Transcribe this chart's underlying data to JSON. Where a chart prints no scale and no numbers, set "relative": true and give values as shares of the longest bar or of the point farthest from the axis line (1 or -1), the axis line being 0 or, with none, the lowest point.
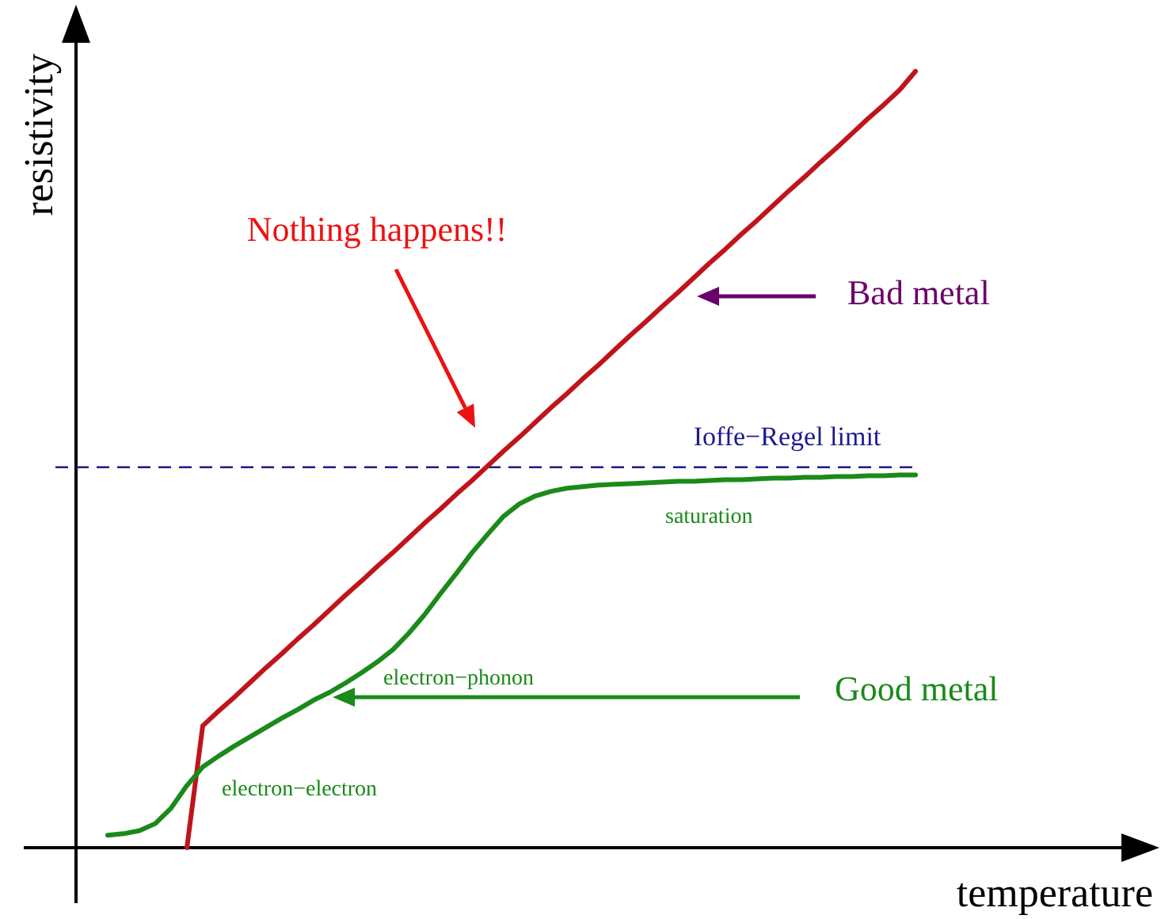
{
  "chart_data": {
    "type": "line",
    "relative": true,
    "xlabel": "temperature",
    "ylabel": "resistivity",
    "categories": [
      null,
      null,
      null,
      null,
      null,
      null,
      null,
      null,
      null,
      null,
      null,
      null,
      null,
      null,
      null,
      null,
      null,
      null,
      null,
      null,
      null,
      null,
      null,
      null,
      null,
      null,
      null,
      null,
      null,
      null,
      null,
      null,
      null,
      null,
      null,
      null,
      null,
      null,
      null,
      null,
      null,
      null,
      null,
      null,
      null,
      null,
      null,
      null,
      null,
      null,
      null,
      null,
      null,
      null,
      null,
      null,
      null,
      null,
      null,
      null,
      null,
      null,
      null,
      null,
      null,
      null
    ],
    "series": [
      {
        "color": "#c0141c",
        "values": [
          null,
          null,
          null,
          null,
          null,
          null,
          null,
          0,
          0.157,
          0.176,
          0.194,
          0.213,
          0.232,
          0.25,
          0.269,
          0.287,
          0.306,
          0.325,
          0.343,
          0.362,
          0.38,
          0.399,
          0.418,
          0.436,
          0.455,
          0.473,
          0.492,
          0.511,
          0.529,
          0.548,
          0.567,
          0.585,
          0.604,
          0.622,
          0.641,
          0.66,
          0.678,
          0.697,
          0.715,
          0.734,
          0.753,
          0.771,
          0.79,
          0.808,
          0.827,
          0.846,
          0.864,
          0.883,
          0.901,
          0.92,
          0.939,
          0.957,
          0.976,
          1.0,
          null,
          null,
          null,
          null,
          null,
          null,
          null,
          null,
          null,
          null,
          null,
          null
        ]
      },
      {
        "color": "#1a8a1a",
        "values": [
          null,
          null,
          0.016,
          0.018,
          0.022,
          0.031,
          0.051,
          0.08,
          0.104,
          0.118,
          0.131,
          0.143,
          0.155,
          0.167,
          0.178,
          0.19,
          0.2,
          0.212,
          0.225,
          0.239,
          0.255,
          0.276,
          0.3,
          0.327,
          0.353,
          0.38,
          0.404,
          0.427,
          0.443,
          0.453,
          0.459,
          0.463,
          0.465,
          0.467,
          0.468,
          0.469,
          0.47,
          0.471,
          0.472,
          0.472,
          0.473,
          0.474,
          0.474,
          0.475,
          0.476,
          0.476,
          0.477,
          0.477,
          0.478,
          0.478,
          0.479,
          0.479,
          0.48,
          0.48,
          null,
          null,
          null,
          null,
          null,
          null,
          null,
          null,
          null,
          null,
          null,
          null
        ]
      }
    ],
    "ref_lines": [
      {
        "axis": "y",
        "value": 0.49,
        "label": "Ioffe−Regel limit",
        "color": "#1a1a8c",
        "line_style": "dashed"
      }
    ],
    "annotations": [
      "Nothing happens!!",
      "Bad metal",
      "Good metal",
      "saturation",
      "electron−phonon",
      "electron−electron"
    ]
  }
}
